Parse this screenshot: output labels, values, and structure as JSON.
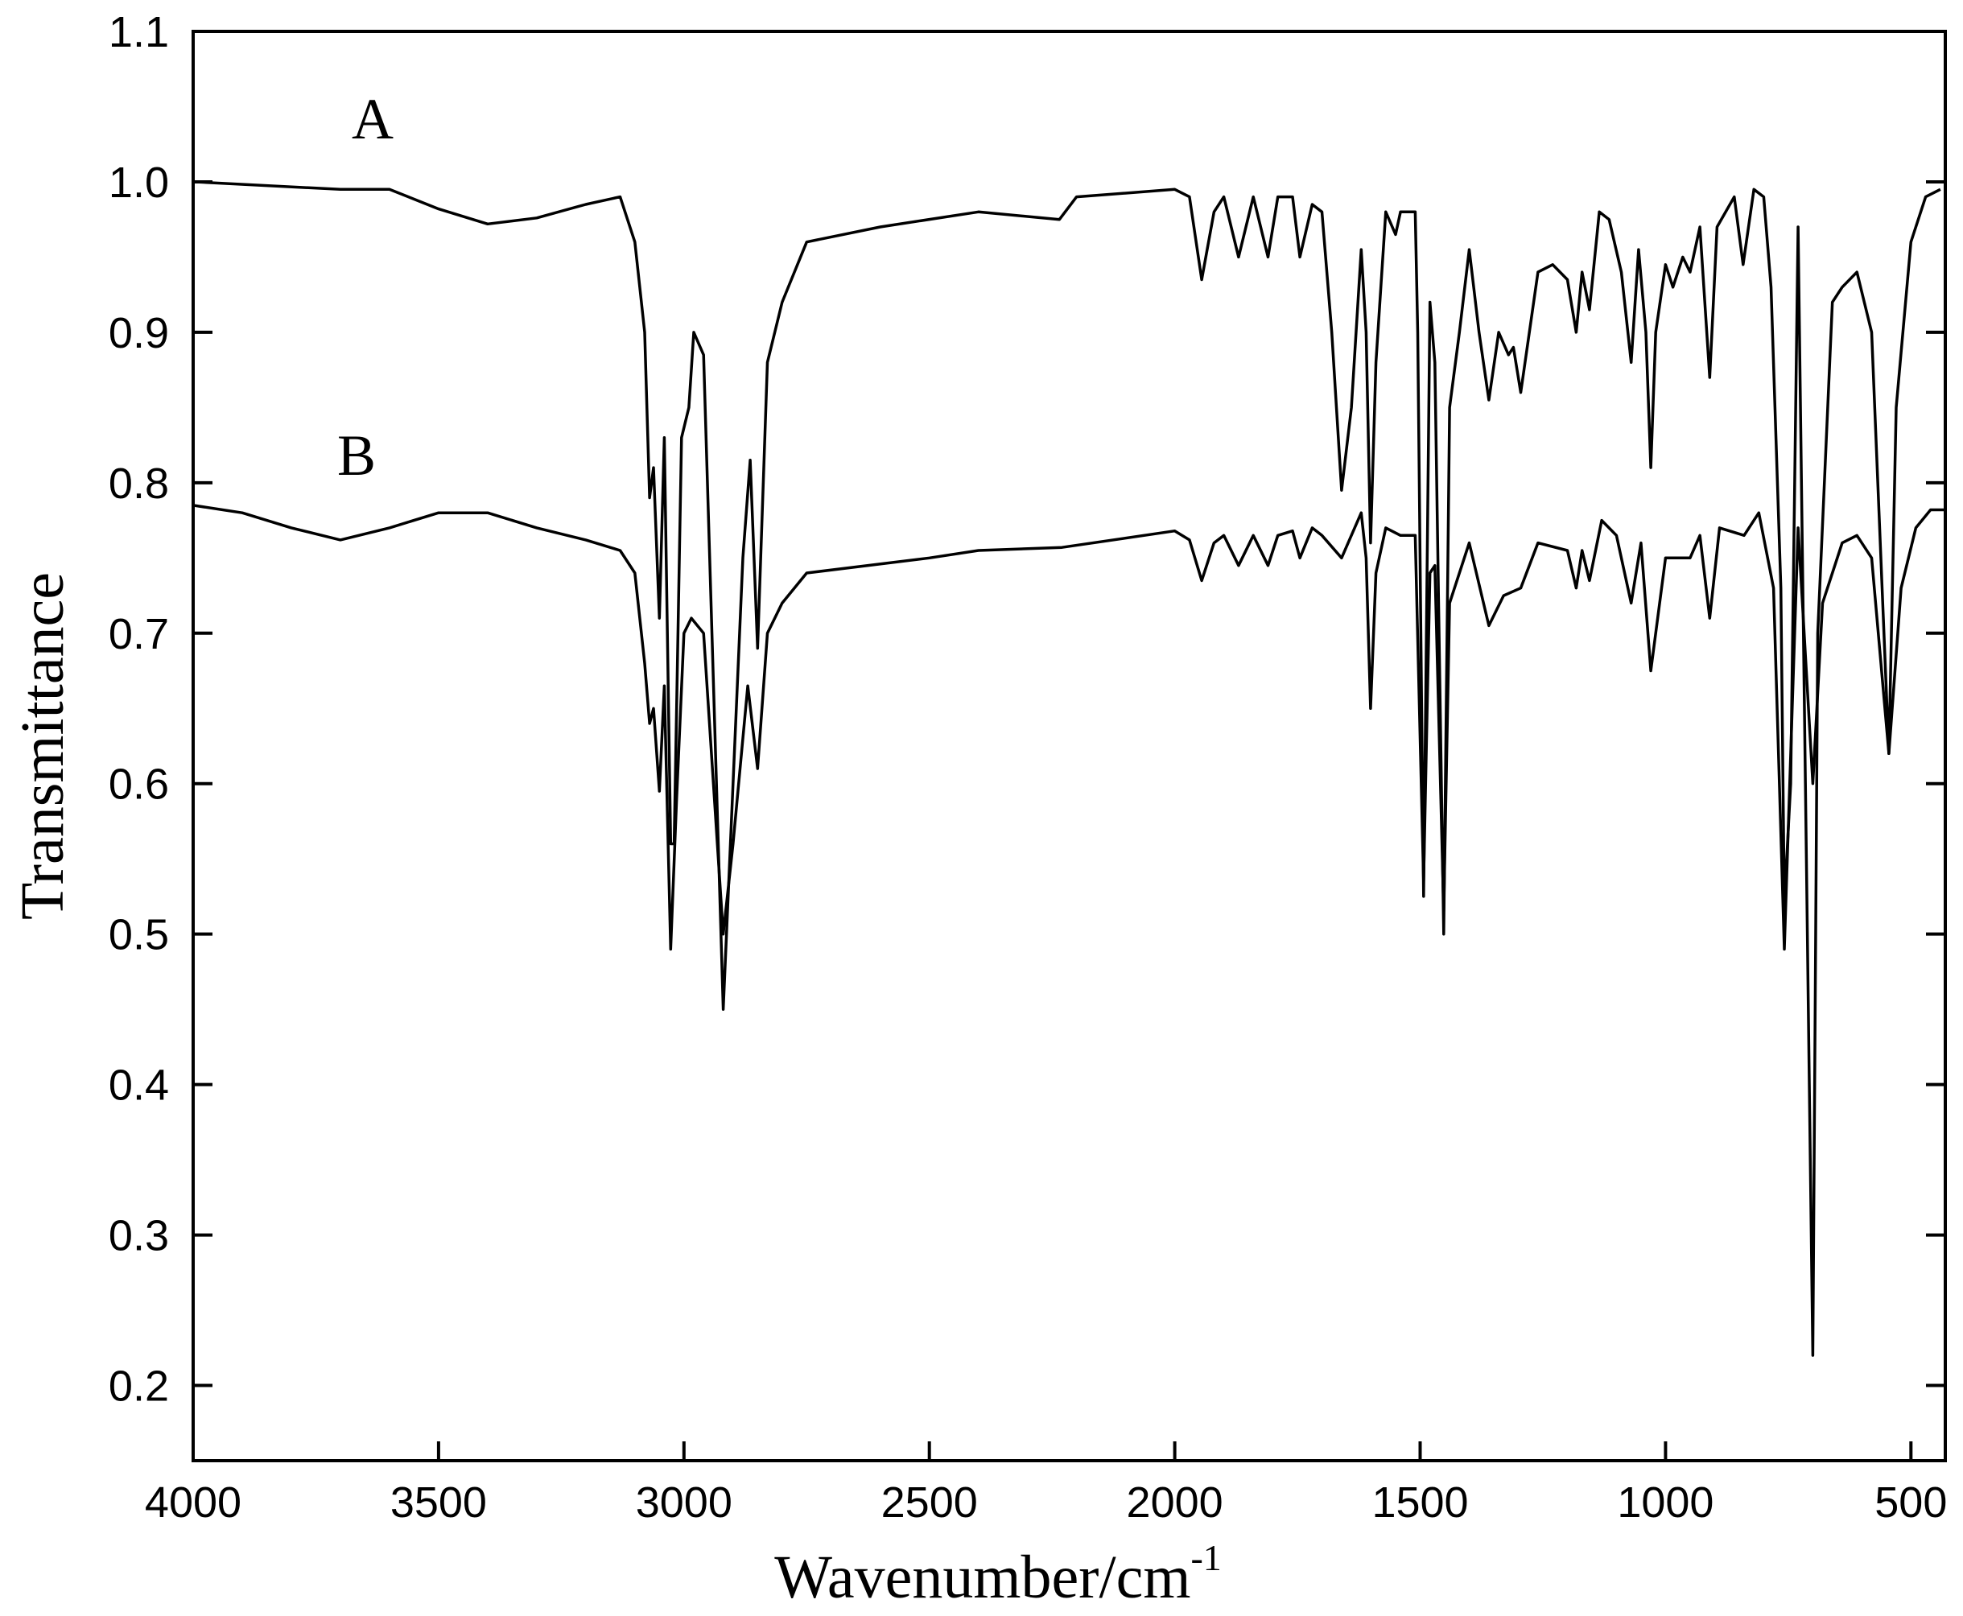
{
  "chart_data": {
    "type": "line",
    "x_label": "Wavenumber/cm",
    "x_label_superscript": "-1",
    "y_label": "Transmittance",
    "annotations": [
      "A",
      "B"
    ],
    "xlim": [
      4000,
      430
    ],
    "ylim": [
      0.15,
      1.1
    ],
    "xticks": [
      4000,
      3500,
      3000,
      2500,
      2000,
      1500,
      1000,
      500
    ],
    "yticks": [
      0.2,
      0.3,
      0.4,
      0.5,
      0.6,
      0.7,
      0.8,
      0.9,
      {
        "value": 1.0,
        "label": "1.0"
      },
      1.1
    ],
    "color": "#000000",
    "series": [
      {
        "name": "A",
        "x": [
          4000,
          3700,
          3600,
          3500,
          3400,
          3300,
          3200,
          3130,
          3100,
          3080,
          3070,
          3062,
          3050,
          3040,
          3027,
          3020,
          3005,
          2990,
          2980,
          2960,
          2920,
          2900,
          2880,
          2865,
          2850,
          2830,
          2800,
          2750,
          2600,
          2400,
          2235,
          2200,
          2000,
          1970,
          1945,
          1920,
          1900,
          1870,
          1840,
          1810,
          1790,
          1760,
          1745,
          1720,
          1700,
          1680,
          1660,
          1640,
          1620,
          1610,
          1601,
          1590,
          1570,
          1550,
          1540,
          1510,
          1505,
          1493,
          1480,
          1470,
          1452,
          1440,
          1420,
          1400,
          1380,
          1360,
          1340,
          1320,
          1310,
          1295,
          1260,
          1230,
          1200,
          1182,
          1170,
          1155,
          1135,
          1115,
          1090,
          1070,
          1055,
          1040,
          1030,
          1020,
          1000,
          985,
          965,
          950,
          930,
          910,
          895,
          860,
          842,
          820,
          800,
          785,
          765,
          758,
          745,
          730,
          715,
          700,
          690,
          660,
          640,
          610,
          580,
          545,
          530,
          500,
          470,
          440
        ],
        "values": [
          1.0,
          0.995,
          0.995,
          0.982,
          0.972,
          0.976,
          0.985,
          0.99,
          0.96,
          0.9,
          0.79,
          0.81,
          0.71,
          0.83,
          0.56,
          0.56,
          0.83,
          0.85,
          0.9,
          0.885,
          0.45,
          0.6,
          0.75,
          0.815,
          0.69,
          0.88,
          0.92,
          0.96,
          0.97,
          0.98,
          0.975,
          0.99,
          0.995,
          0.99,
          0.935,
          0.98,
          0.99,
          0.95,
          0.99,
          0.95,
          0.99,
          0.99,
          0.95,
          0.985,
          0.98,
          0.9,
          0.795,
          0.85,
          0.955,
          0.9,
          0.76,
          0.88,
          0.98,
          0.965,
          0.98,
          0.98,
          0.9,
          0.525,
          0.92,
          0.88,
          0.5,
          0.85,
          0.9,
          0.955,
          0.9,
          0.855,
          0.9,
          0.885,
          0.89,
          0.86,
          0.94,
          0.945,
          0.935,
          0.9,
          0.94,
          0.915,
          0.98,
          0.975,
          0.94,
          0.88,
          0.955,
          0.9,
          0.81,
          0.9,
          0.945,
          0.93,
          0.95,
          0.94,
          0.97,
          0.87,
          0.97,
          0.99,
          0.945,
          0.995,
          0.99,
          0.93,
          0.73,
          0.52,
          0.6,
          0.97,
          0.6,
          0.22,
          0.7,
          0.92,
          0.93,
          0.94,
          0.9,
          0.62,
          0.85,
          0.96,
          0.99,
          0.995
        ]
      },
      {
        "name": "B",
        "x": [
          4000,
          3900,
          3800,
          3700,
          3600,
          3500,
          3400,
          3300,
          3200,
          3130,
          3100,
          3080,
          3070,
          3062,
          3050,
          3040,
          3027,
          3015,
          3000,
          2985,
          2960,
          2920,
          2900,
          2870,
          2850,
          2830,
          2800,
          2750,
          2500,
          2400,
          2230,
          2000,
          1970,
          1945,
          1920,
          1900,
          1870,
          1840,
          1810,
          1790,
          1760,
          1745,
          1720,
          1700,
          1660,
          1620,
          1610,
          1601,
          1590,
          1570,
          1540,
          1510,
          1493,
          1480,
          1470,
          1452,
          1440,
          1400,
          1360,
          1330,
          1295,
          1260,
          1200,
          1182,
          1170,
          1155,
          1130,
          1100,
          1070,
          1050,
          1030,
          1000,
          950,
          930,
          910,
          890,
          840,
          810,
          780,
          758,
          740,
          730,
          700,
          680,
          640,
          610,
          580,
          545,
          520,
          490,
          460,
          430
        ],
        "values": [
          0.785,
          0.78,
          0.77,
          0.762,
          0.77,
          0.78,
          0.78,
          0.77,
          0.762,
          0.755,
          0.74,
          0.68,
          0.64,
          0.65,
          0.595,
          0.665,
          0.49,
          0.59,
          0.7,
          0.71,
          0.7,
          0.5,
          0.56,
          0.665,
          0.61,
          0.7,
          0.72,
          0.74,
          0.75,
          0.755,
          0.757,
          0.768,
          0.762,
          0.735,
          0.76,
          0.765,
          0.745,
          0.765,
          0.745,
          0.765,
          0.768,
          0.75,
          0.77,
          0.765,
          0.75,
          0.78,
          0.75,
          0.65,
          0.74,
          0.77,
          0.765,
          0.765,
          0.535,
          0.74,
          0.745,
          0.515,
          0.72,
          0.76,
          0.705,
          0.725,
          0.73,
          0.76,
          0.755,
          0.73,
          0.755,
          0.735,
          0.775,
          0.765,
          0.72,
          0.76,
          0.675,
          0.75,
          0.75,
          0.765,
          0.71,
          0.77,
          0.765,
          0.78,
          0.73,
          0.49,
          0.67,
          0.77,
          0.6,
          0.72,
          0.76,
          0.765,
          0.75,
          0.62,
          0.73,
          0.77,
          0.782,
          0.782
        ]
      }
    ]
  }
}
